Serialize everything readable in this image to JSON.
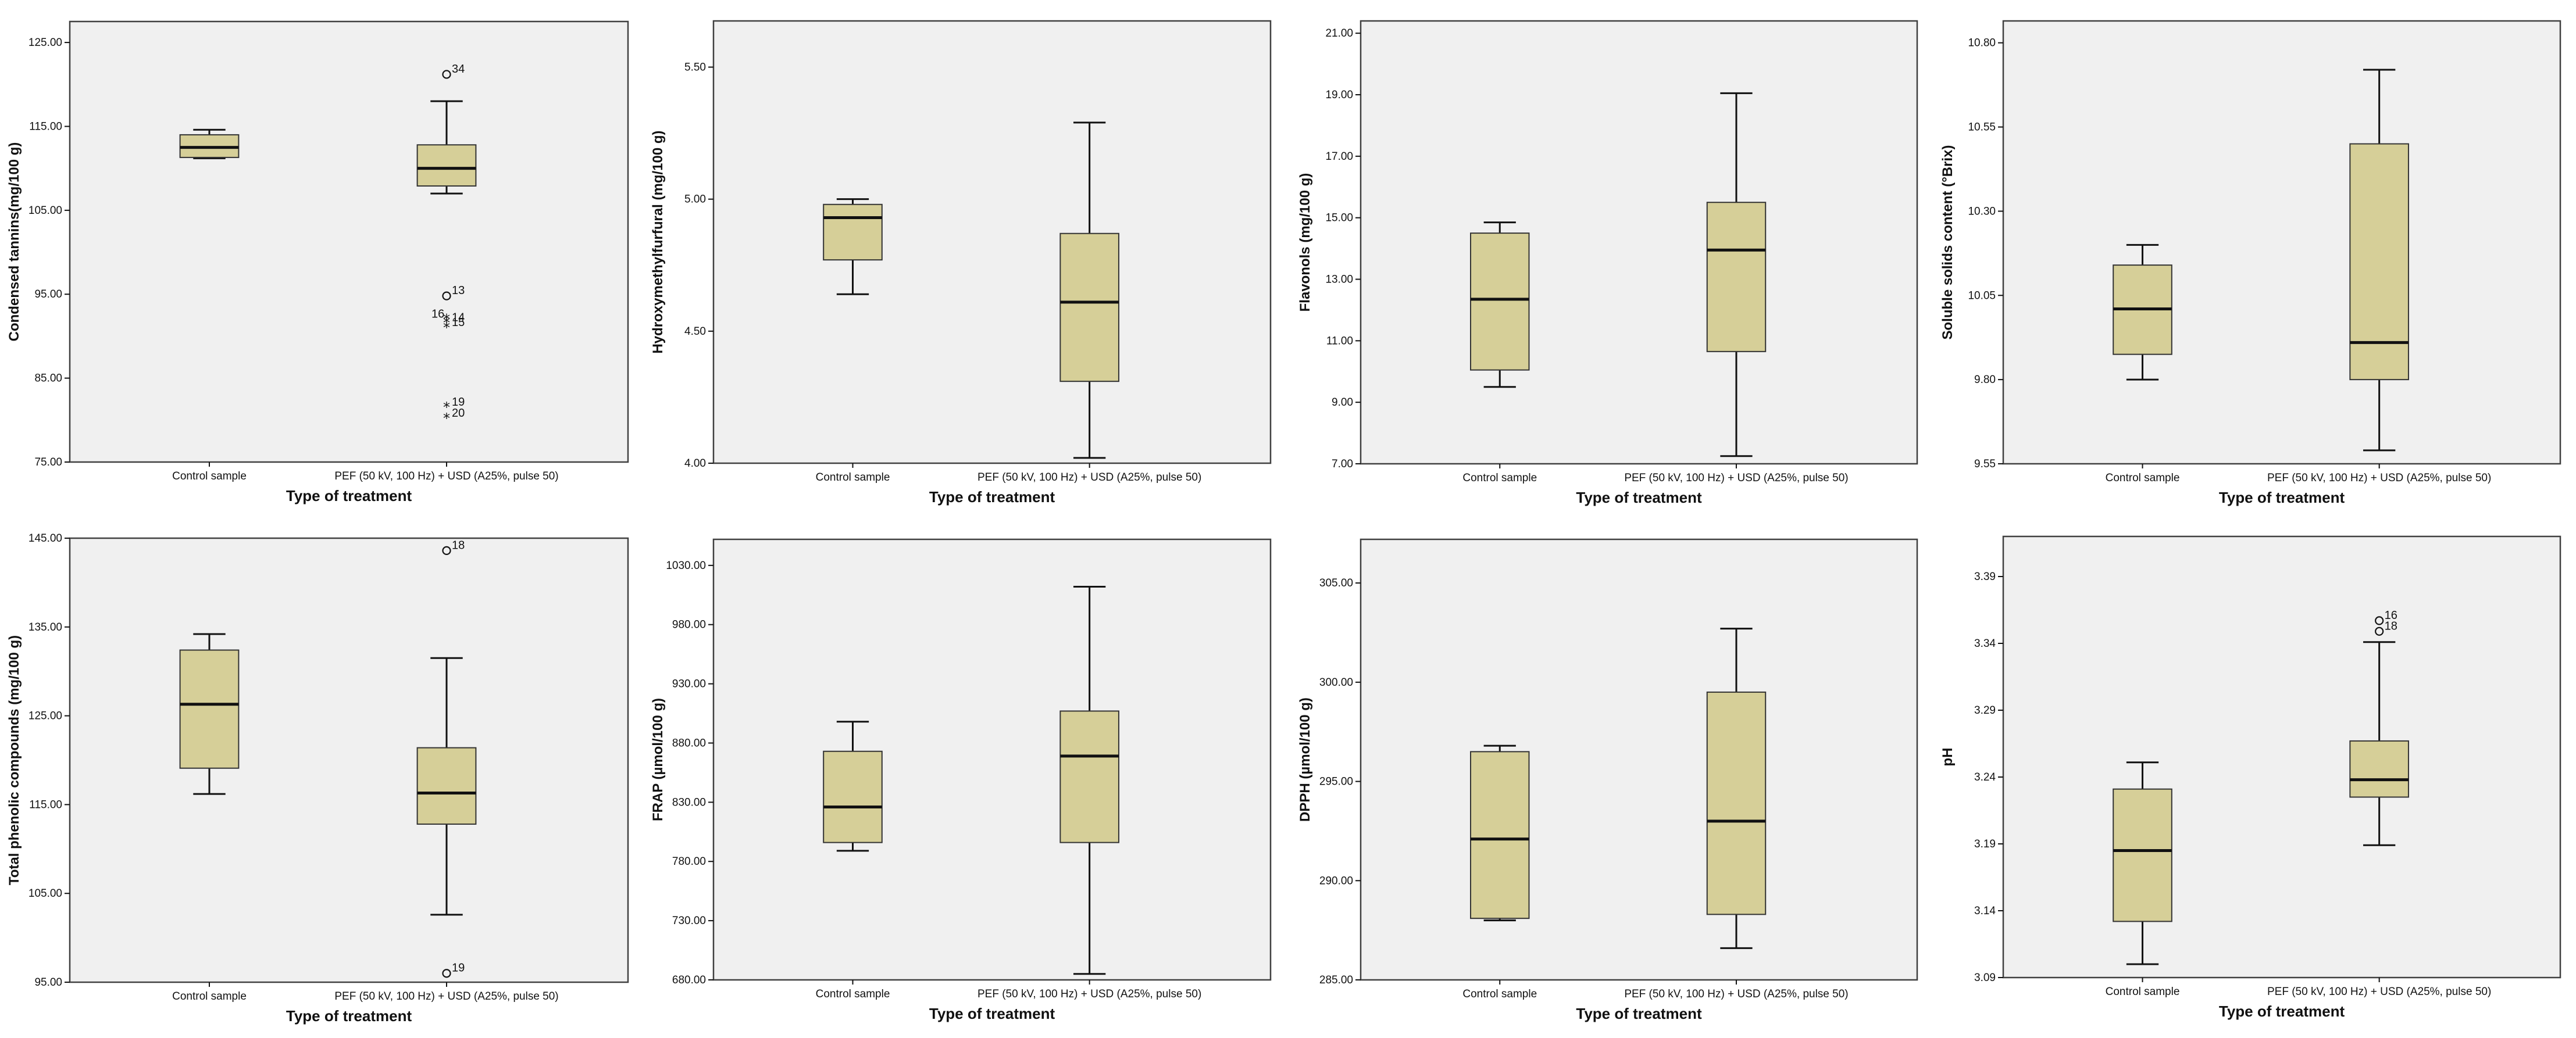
{
  "colors": {
    "box_fill": "#d6cf98",
    "plot_bg": "#f0f0f0",
    "frame": "#404040",
    "line": "#111111"
  },
  "chart_data": [
    {
      "type": "boxplot",
      "ylabel": "Condensed tannins(mg/100 g)",
      "xlabel": "Type of treatment",
      "ylim": [
        75,
        127.5
      ],
      "ticks": [
        "75.00",
        "85.00",
        "95.00",
        "105.00",
        "115.00",
        "125.00"
      ],
      "groups": [
        {
          "category": "Control sample",
          "min": 111.2,
          "q1": 111.3,
          "median": 112.5,
          "q3": 114.0,
          "max": 114.6,
          "outliers": []
        },
        {
          "category": "PEF (50 kV, 100 Hz) + USD (A25%, pulse 50)",
          "min": 107.0,
          "q1": 107.9,
          "median": 110.0,
          "q3": 112.8,
          "max": 118.0,
          "outliers": [
            {
              "value": 121.2,
              "marker": "circle",
              "label": "34"
            },
            {
              "value": 94.8,
              "marker": "circle",
              "label": "13"
            },
            {
              "value": 92.0,
              "marker": "star",
              "label": "16"
            },
            {
              "value": 91.6,
              "marker": "star",
              "label": "14"
            },
            {
              "value": 91.0,
              "marker": "star",
              "label": "15"
            },
            {
              "value": 81.5,
              "marker": "star",
              "label": "19"
            },
            {
              "value": 80.2,
              "marker": "star",
              "label": "20"
            }
          ]
        }
      ]
    },
    {
      "type": "boxplot",
      "ylabel": "Hydroxymethylfurfural (mg/100 g)",
      "xlabel": "Type of treatment",
      "ylim": [
        4.0,
        5.675
      ],
      "ticks": [
        "4.00",
        "4.50",
        "5.00",
        "5.50"
      ],
      "groups": [
        {
          "category": "Control sample",
          "min": 4.64,
          "q1": 4.77,
          "median": 4.93,
          "q3": 4.98,
          "max": 5.0,
          "outliers": []
        },
        {
          "category": "PEF (50 kV, 100 Hz) + USD (A25%, pulse 50)",
          "min": 4.02,
          "q1": 4.31,
          "median": 4.61,
          "q3": 4.87,
          "max": 5.29,
          "outliers": []
        }
      ]
    },
    {
      "type": "boxplot",
      "ylabel": "Flavonols (mg/100 g)",
      "xlabel": "Type of treatment",
      "ylim": [
        7.0,
        21.4
      ],
      "ticks": [
        "7.00",
        "9.00",
        "11.00",
        "13.00",
        "15.00",
        "17.00",
        "19.00",
        "21.00"
      ],
      "groups": [
        {
          "category": "Control sample",
          "min": 9.5,
          "q1": 10.05,
          "median": 12.35,
          "q3": 14.5,
          "max": 14.85,
          "outliers": []
        },
        {
          "category": "PEF (50 kV, 100 Hz) + USD (A25%, pulse 50)",
          "min": 7.25,
          "q1": 10.65,
          "median": 13.95,
          "q3": 15.5,
          "max": 19.05,
          "outliers": []
        }
      ]
    },
    {
      "type": "boxplot",
      "ylabel": "Soluble solids content (°Brix)",
      "xlabel": "Type of treatment",
      "ylim": [
        9.55,
        10.865
      ],
      "ticks": [
        "9.55",
        "9.80",
        "10.05",
        "10.30",
        "10.55",
        "10.80"
      ],
      "groups": [
        {
          "category": "Control sample",
          "min": 9.8,
          "q1": 9.875,
          "median": 10.01,
          "q3": 10.14,
          "max": 10.2,
          "outliers": []
        },
        {
          "category": "PEF (50 kV, 100 Hz) + USD (A25%, pulse 50)",
          "min": 9.59,
          "q1": 9.8,
          "median": 9.91,
          "q3": 10.5,
          "max": 10.72,
          "outliers": []
        }
      ]
    },
    {
      "type": "boxplot",
      "ylabel": "Total phenolic compounds (mg/100 g)",
      "xlabel": "Type of treatment",
      "ylim": [
        95,
        145
      ],
      "ticks": [
        "95.00",
        "105.00",
        "115.00",
        "125.00",
        "135.00",
        "145.00"
      ],
      "groups": [
        {
          "category": "Control sample",
          "min": 116.2,
          "q1": 119.1,
          "median": 126.3,
          "q3": 132.4,
          "max": 134.2,
          "outliers": []
        },
        {
          "category": "PEF (50 kV, 100 Hz) + USD (A25%, pulse 50)",
          "min": 102.6,
          "q1": 112.8,
          "median": 116.3,
          "q3": 121.4,
          "max": 131.5,
          "outliers": [
            {
              "value": 143.6,
              "marker": "circle",
              "label": "18"
            },
            {
              "value": 96.0,
              "marker": "circle",
              "label": "19"
            }
          ]
        }
      ]
    },
    {
      "type": "boxplot",
      "ylabel": "FRAP (µmol/100 g)",
      "xlabel": "Type of treatment",
      "ylim": [
        680,
        1052
      ],
      "ticks": [
        "680.00",
        "730.00",
        "780.00",
        "830.00",
        "880.00",
        "930.00",
        "980.00",
        "1030.00"
      ],
      "groups": [
        {
          "category": "Control sample",
          "min": 789,
          "q1": 796,
          "median": 826,
          "q3": 873,
          "max": 898,
          "outliers": []
        },
        {
          "category": "PEF (50 kV, 100 Hz) + USD (A25%, pulse 50)",
          "min": 685,
          "q1": 796,
          "median": 869,
          "q3": 907,
          "max": 1012,
          "outliers": []
        }
      ]
    },
    {
      "type": "boxplot",
      "ylabel": "DPPH (µmol/100 g)",
      "xlabel": "Type of treatment",
      "ylim": [
        285,
        307.2
      ],
      "ticks": [
        "285.00",
        "290.00",
        "295.00",
        "300.00",
        "305.00"
      ],
      "groups": [
        {
          "category": "Control sample",
          "min": 288.0,
          "q1": 288.1,
          "median": 292.1,
          "q3": 296.5,
          "max": 296.8,
          "outliers": []
        },
        {
          "category": "PEF (50 kV, 100 Hz) + USD (A25%, pulse 50)",
          "min": 286.6,
          "q1": 288.3,
          "median": 293.0,
          "q3": 299.5,
          "max": 302.7,
          "outliers": []
        }
      ]
    },
    {
      "type": "boxplot",
      "ylabel": "pH",
      "xlabel": "Type of treatment",
      "ylim": [
        3.09,
        3.42
      ],
      "ticks": [
        "3.09",
        "3.14",
        "3.19",
        "3.24",
        "3.29",
        "3.34",
        "3.39"
      ],
      "groups": [
        {
          "category": "Control sample",
          "min": 3.1,
          "q1": 3.132,
          "median": 3.185,
          "q3": 3.231,
          "max": 3.251,
          "outliers": []
        },
        {
          "category": "PEF (50 kV, 100 Hz) + USD (A25%, pulse 50)",
          "min": 3.189,
          "q1": 3.225,
          "median": 3.238,
          "q3": 3.267,
          "max": 3.341,
          "outliers": [
            {
              "value": 3.357,
              "marker": "circle",
              "label": "16"
            },
            {
              "value": 3.349,
              "marker": "circle",
              "label": "18"
            }
          ]
        }
      ]
    }
  ]
}
